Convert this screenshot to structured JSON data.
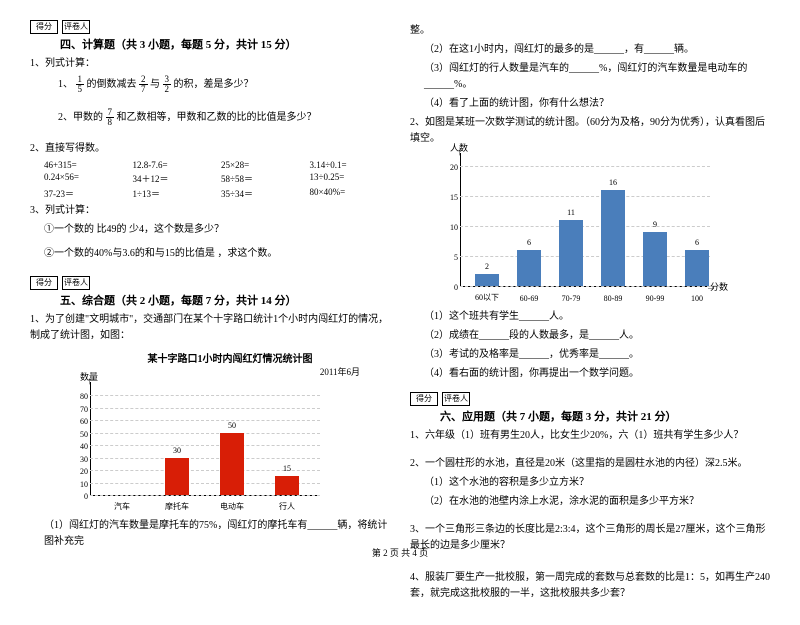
{
  "left": {
    "scoreLabels": [
      "得分",
      "评卷人"
    ],
    "sec4": {
      "title": "四、计算题（共 3 小题，每题 5 分，共计 15 分）",
      "q1": "1、列式计算：",
      "q1a_pre": "1、",
      "q1a_f1n": "1",
      "q1a_f1d": "5",
      "q1a_mid1": "的倒数减去",
      "q1a_f2n": "2",
      "q1a_f2d": "7",
      "q1a_mid2": "与",
      "q1a_f3n": "3",
      "q1a_f3d": "2",
      "q1a_end": "的积，差是多少？",
      "q1b_pre": "2、甲数的",
      "q1b_fn": "7",
      "q1b_fd": "8",
      "q1b_end": "和乙数相等，甲数和乙数的比的比值是多少？",
      "q2": "2、直接写得数。",
      "calcs": [
        "46+315=",
        "12.8-7.6=",
        "25×28=",
        "3.14÷0.1=",
        "0.24×56=",
        "34＋12＝",
        "58÷58＝",
        "13÷0.25=",
        "37-23＝",
        "1÷13＝",
        "35÷34＝",
        "80×40%="
      ],
      "q3": "3、列式计算：",
      "q3a": "①一个数的 比49的 少4，这个数是多少？",
      "q3b": "②一个数的40%与3.6的和与15的比值是 ，求这个数。"
    },
    "sec5": {
      "title": "五、综合题（共 2 小题，每题 7 分，共计 14 分）",
      "q1": "1、为了创建\"文明城市\"，交通部门在某个十字路口统计1个小时内闯红灯的情况，制成了统计图，如图：",
      "chart": {
        "title": "某十字路口1小时内闯红灯情况统计图",
        "subtitle": "2011年6月",
        "ylabel": "数量",
        "categories": [
          "汽车",
          "摩托车",
          "电动车",
          "行人"
        ],
        "values": [
          null,
          30,
          50,
          15
        ],
        "ymax": 80,
        "ystep": 10,
        "bar_color": "#d81e06",
        "grid_color": "#cccccc"
      },
      "q1sub": "（1）闯红灯的汽车数量是摩托车的75%，闯红灯的摩托车有______辆，将统计图补充完"
    }
  },
  "right": {
    "top": {
      "l1": "整。",
      "l2": "（2）在这1小时内，闯红灯的最多的是______，有______辆。",
      "l3": "（3）闯红灯的行人数量是汽车的______%，闯红灯的汽车数量是电动车的______%。",
      "l4": "（4）看了上面的统计图，你有什么想法？",
      "q2": "2、如图是某班一次数学测试的统计图。（60分为及格，90分为优秀），认真看图后填空。",
      "chart": {
        "ylabel": "人数",
        "xlabel": "分数",
        "categories": [
          "60以下",
          "60-69",
          "70-79",
          "80-89",
          "90-99",
          "100"
        ],
        "values": [
          2,
          6,
          11,
          16,
          9,
          6
        ],
        "ymax": 20,
        "ystep": 5,
        "bar_color": "#4a7ebb",
        "grid_color": "#cccccc"
      },
      "subs": [
        "（1）这个班共有学生______人。",
        "（2）成绩在______段的人数最多，是______人。",
        "（3）考试的及格率是______，优秀率是______。",
        "（4）看右面的统计图，你再提出一个数学问题。"
      ]
    },
    "sec6": {
      "scoreLabels": [
        "得分",
        "评卷人"
      ],
      "title": "六、应用题（共 7 小题，每题 3 分，共计 21 分）",
      "q1": "1、六年级（1）班有男生20人，比女生少20%，六（1）班共有学生多少人？",
      "q2": "2、一个圆柱形的水池，直径是20米（这里指的是圆柱水池的内径）深2.5米。",
      "q2a": "（1）这个水池的容积是多少立方米？",
      "q2b": "（2）在水池的池壁内涂上水泥，涂水泥的面积是多少平方米？",
      "q3": "3、一个三角形三条边的长度比是2:3:4，这个三角形的周长是27厘米，这个三角形最长的边是多少厘米？",
      "q4": "4、服装厂要生产一批校服，第一周完成的套数与总套数的比是1：5，如再生产240套，就完成这批校服的一半，这批校服共多少套？"
    }
  },
  "footer": "第 2 页 共 4 页"
}
